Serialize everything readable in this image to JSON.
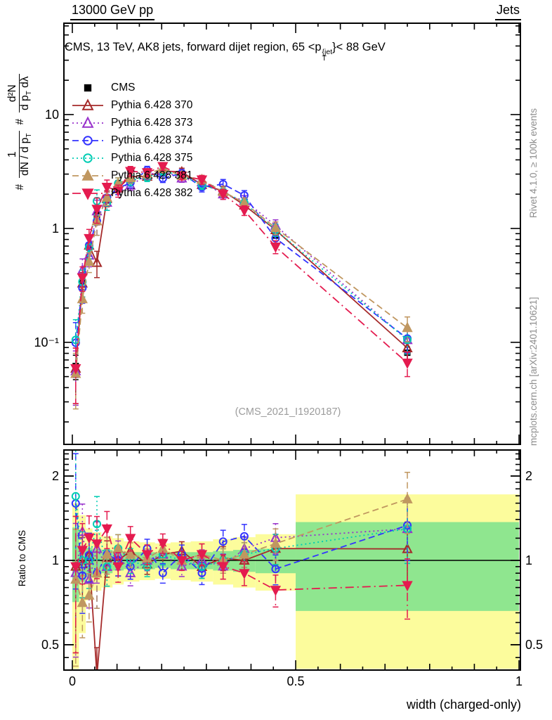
{
  "header": {
    "left": "13000 GeV pp",
    "right": "Jets"
  },
  "title": {
    "pre": "CMS, 13 TeV, AK8 jets, forward dijet region, 65 <p",
    "sup": "{jet",
    "sub": "T",
    "post": "}< 88 GeV"
  },
  "ylabel": {
    "hash1": "#",
    "num1": "1",
    "den1_pre": "dN / d p",
    "den1_sub": "T",
    "hash2": "#",
    "num2": "d²N",
    "den2_pre": "d p",
    "den2_sub": "T",
    "den2_post": " dλ"
  },
  "ratio_ylabel": "Ratio to CMS",
  "xlabel": "width (charged-only)",
  "watermark": "(CMS_2021_I1920187)",
  "side_texts": {
    "rivet": "Rivet 4.1.0, ≥ 100k events",
    "mcplots": "mcplots.cern.ch [arXiv:2401.10621]"
  },
  "axes": {
    "x": {
      "label_values": [
        0,
        0.5,
        1
      ],
      "labels": [
        "0",
        "0.5",
        "1"
      ]
    },
    "y_main": {
      "labels": [
        {
          "v": 10,
          "t": "10"
        },
        {
          "v": 1,
          "t": "1"
        },
        {
          "v": 0.1,
          "t": "10⁻¹"
        }
      ]
    },
    "y_ratio": {
      "labels": [
        {
          "v": 2,
          "t": "2"
        },
        {
          "v": 1,
          "t": "1"
        },
        {
          "v": 0.5,
          "t": "0.5"
        }
      ]
    }
  },
  "colors": {
    "band_yellow": "#FCFC9C",
    "band_green": "#8FE68F",
    "frame": "#000000",
    "gray_text": "#8e8e8e"
  },
  "chart_data": {
    "type": "line",
    "title": "CMS, 13 TeV, AK8 jets, forward dijet region, 65 < pT{jet} < 88 GeV",
    "xlabel": "width (charged-only)",
    "ylabel": "# 1/(dN/dpT) # d2N/(dpT dlambda)",
    "ratio_label": "Ratio to CMS",
    "x": [
      0.0075,
      0.0225,
      0.0375,
      0.055,
      0.0775,
      0.1025,
      0.13,
      0.1675,
      0.2025,
      0.245,
      0.29,
      0.3375,
      0.385,
      0.455,
      0.75
    ],
    "xlim": [
      -0.0189,
      1.0031
    ],
    "ylim_main": [
      0.0127,
      63.4
    ],
    "ylim_ratio": [
      0.406,
      2.477
    ],
    "series": [
      {
        "name": "CMS",
        "color": "#000000",
        "marker": "square",
        "filled": true,
        "linestyle": "none",
        "values": [
          0.062,
          0.34,
          0.68,
          1.29,
          1.78,
          2.25,
          2.65,
          2.95,
          3.05,
          2.9,
          2.55,
          2.1,
          1.6,
          0.88,
          0.081
        ],
        "errors": [
          0.015,
          0.05,
          0.07,
          0.1,
          0.11,
          0.12,
          0.12,
          0.12,
          0.12,
          0.11,
          0.1,
          0.09,
          0.08,
          0.06,
          0.01
        ]
      },
      {
        "name": "Pythia 6.428 370",
        "color": "#a52a2a",
        "marker": "triangle-up",
        "filled": false,
        "linestyle": "solid",
        "values": [
          0.059,
          0.33,
          0.71,
          0.5,
          1.82,
          2.25,
          2.86,
          2.86,
          3.2,
          3.13,
          2.42,
          2.14,
          1.6,
          0.97,
          0.089
        ],
        "errors": [
          0.03,
          0.08,
          0.14,
          0.13,
          0.27,
          0.27,
          0.29,
          0.23,
          0.26,
          0.25,
          0.22,
          0.21,
          0.16,
          0.12,
          0.022
        ]
      },
      {
        "name": "Pythia 6.428 373",
        "color": "#9932cc",
        "marker": "triangle-up",
        "filled": false,
        "linestyle": "dotted",
        "values": [
          0.056,
          0.43,
          0.58,
          1.42,
          1.69,
          2.36,
          2.39,
          2.95,
          3.2,
          2.76,
          2.55,
          2.0,
          1.76,
          1.06,
          0.105
        ],
        "errors": [
          0.028,
          0.11,
          0.12,
          0.35,
          0.25,
          0.28,
          0.24,
          0.24,
          0.26,
          0.22,
          0.23,
          0.2,
          0.18,
          0.13,
          0.026
        ]
      },
      {
        "name": "Pythia 6.428 374",
        "color": "#3333ff",
        "marker": "circle",
        "filled": false,
        "linestyle": "dashed",
        "values": [
          0.099,
          0.3,
          0.71,
          1.16,
          1.87,
          2.25,
          2.52,
          3.25,
          2.75,
          3.05,
          2.3,
          2.45,
          1.95,
          0.82,
          0.108
        ],
        "errors": [
          0.05,
          0.08,
          0.14,
          0.29,
          0.28,
          0.27,
          0.25,
          0.26,
          0.22,
          0.24,
          0.21,
          0.24,
          0.2,
          0.1,
          0.027
        ]
      },
      {
        "name": "Pythia 6.428 375",
        "color": "#00ccb3",
        "marker": "circle",
        "filled": false,
        "linestyle": "dotted",
        "values": [
          0.105,
          0.34,
          0.68,
          1.74,
          1.69,
          2.48,
          2.65,
          2.8,
          3.2,
          2.9,
          2.42,
          2.1,
          1.68,
          0.97,
          0.105
        ],
        "errors": [
          0.053,
          0.09,
          0.14,
          0.44,
          0.25,
          0.3,
          0.27,
          0.22,
          0.26,
          0.23,
          0.22,
          0.21,
          0.17,
          0.12,
          0.026
        ]
      },
      {
        "name": "Pythia 6.428 381",
        "color": "#c09760",
        "marker": "triangle-up",
        "filled": true,
        "linestyle": "dashed",
        "values": [
          0.053,
          0.24,
          0.51,
          1.16,
          1.87,
          2.48,
          2.78,
          3.0,
          3.36,
          2.9,
          2.68,
          2.1,
          1.68,
          1.01,
          0.134
        ],
        "errors": [
          0.027,
          0.06,
          0.1,
          0.29,
          0.28,
          0.3,
          0.28,
          0.24,
          0.27,
          0.23,
          0.24,
          0.21,
          0.17,
          0.13,
          0.033
        ]
      },
      {
        "name": "Pythia 6.428 382",
        "color": "#e41b4f",
        "marker": "triangle-down",
        "filled": true,
        "linestyle": "dashdot",
        "values": [
          0.059,
          0.37,
          0.82,
          1.48,
          2.31,
          2.14,
          3.18,
          3.1,
          3.51,
          2.9,
          2.68,
          2.0,
          1.44,
          0.69,
          0.066
        ],
        "errors": [
          0.03,
          0.09,
          0.16,
          0.37,
          0.35,
          0.26,
          0.32,
          0.25,
          0.28,
          0.23,
          0.24,
          0.2,
          0.14,
          0.09,
          0.016
        ]
      }
    ],
    "ratio_reference": 1,
    "bin_edges": [
      0,
      0.015,
      0.03,
      0.045,
      0.065,
      0.09,
      0.115,
      0.15,
      0.185,
      0.22,
      0.265,
      0.315,
      0.36,
      0.41,
      0.5,
      1.0
    ],
    "ratio_bands": [
      {
        "yellow": [
          0.41,
          1.6
        ],
        "green": [
          0.71,
          1.31
        ]
      },
      {
        "yellow": [
          0.55,
          1.45
        ],
        "green": [
          0.84,
          1.12
        ]
      },
      {
        "yellow": [
          0.72,
          1.3
        ],
        "green": [
          0.87,
          1.11
        ]
      },
      {
        "yellow": [
          0.78,
          1.26
        ],
        "green": [
          0.89,
          1.1
        ]
      },
      {
        "yellow": [
          0.8,
          1.22
        ],
        "green": [
          0.9,
          1.09
        ]
      },
      {
        "yellow": [
          0.82,
          1.2
        ],
        "green": [
          0.92,
          1.08
        ]
      },
      {
        "yellow": [
          0.84,
          1.17
        ],
        "green": [
          0.93,
          1.07
        ]
      },
      {
        "yellow": [
          0.85,
          1.16
        ],
        "green": [
          0.93,
          1.07
        ]
      },
      {
        "yellow": [
          0.86,
          1.15
        ],
        "green": [
          0.94,
          1.06
        ]
      },
      {
        "yellow": [
          0.85,
          1.16
        ],
        "green": [
          0.93,
          1.07
        ]
      },
      {
        "yellow": [
          0.84,
          1.17
        ],
        "green": [
          0.93,
          1.07
        ]
      },
      {
        "yellow": [
          0.82,
          1.19
        ],
        "green": [
          0.92,
          1.08
        ]
      },
      {
        "yellow": [
          0.8,
          1.21
        ],
        "green": [
          0.91,
          1.09
        ]
      },
      {
        "yellow": [
          0.78,
          1.24
        ],
        "green": [
          0.9,
          1.1
        ]
      },
      {
        "yellow": [
          0.41,
          1.72
        ],
        "green": [
          0.66,
          1.37
        ]
      }
    ]
  }
}
